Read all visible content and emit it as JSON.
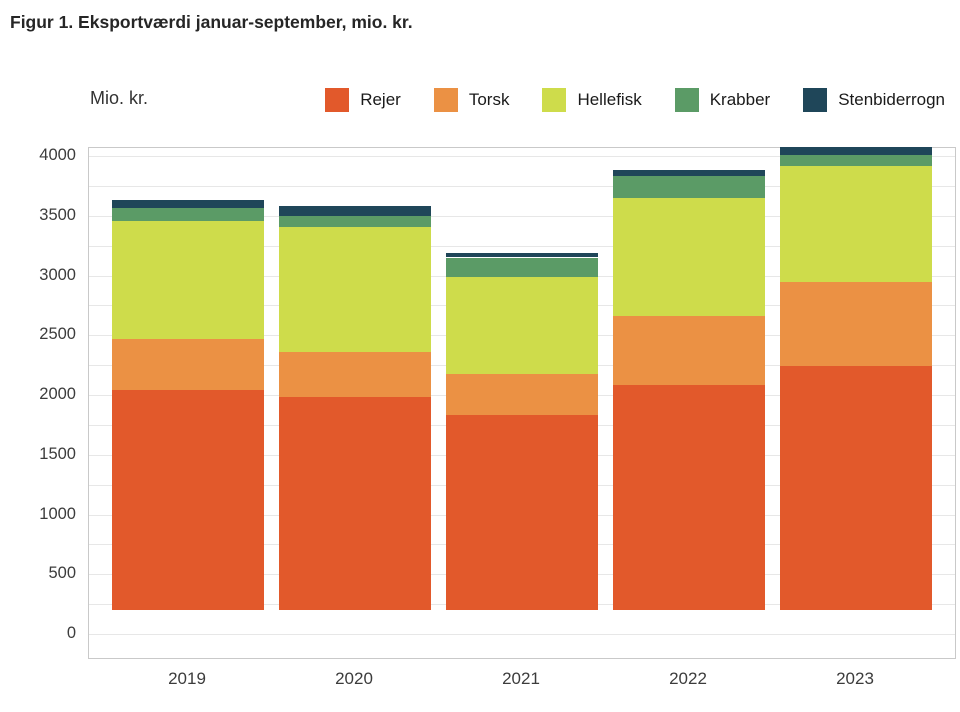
{
  "figure": {
    "title": "Figur 1. Eksportværdi januar-september, mio. kr.",
    "y_axis_unit_label": "Mio. kr."
  },
  "chart_data": {
    "type": "bar",
    "stacked": true,
    "title": "Figur 1. Eksportværdi januar-september, mio. kr.",
    "xlabel": "",
    "ylabel": "Mio. kr.",
    "categories": [
      "2019",
      "2020",
      "2021",
      "2022",
      "2023"
    ],
    "series": [
      {
        "name": "Rejer",
        "color": "#e2592b",
        "values": [
          1845,
          1780,
          1635,
          1885,
          2040
        ]
      },
      {
        "name": "Torsk",
        "color": "#eb9144",
        "values": [
          425,
          375,
          340,
          575,
          705
        ]
      },
      {
        "name": "Hellefisk",
        "color": "#cedc4b",
        "values": [
          985,
          1050,
          815,
          990,
          970
        ]
      },
      {
        "name": "Krabber",
        "color": "#5b9b66",
        "values": [
          110,
          90,
          160,
          180,
          90
        ]
      },
      {
        "name": "Stenbiderrogn",
        "color": "#1f4659",
        "values": [
          70,
          85,
          40,
          50,
          70
        ]
      }
    ],
    "totals": [
      3435,
      3380,
      2990,
      3680,
      3875
    ],
    "ylim": [
      0,
      4000
    ],
    "ytick_step": 500,
    "grid_step": 250,
    "ytick_labels": [
      "0",
      "500",
      "1000",
      "1500",
      "2000",
      "2500",
      "3000",
      "3500",
      "4000"
    ],
    "grid": true,
    "legend_position": "top-right"
  },
  "colors": {
    "grid": "#e7e7e7",
    "plot_border": "#c9c9c9",
    "axis_text": "#3c3c3c",
    "title_text": "#262626",
    "background": "#ffffff"
  }
}
